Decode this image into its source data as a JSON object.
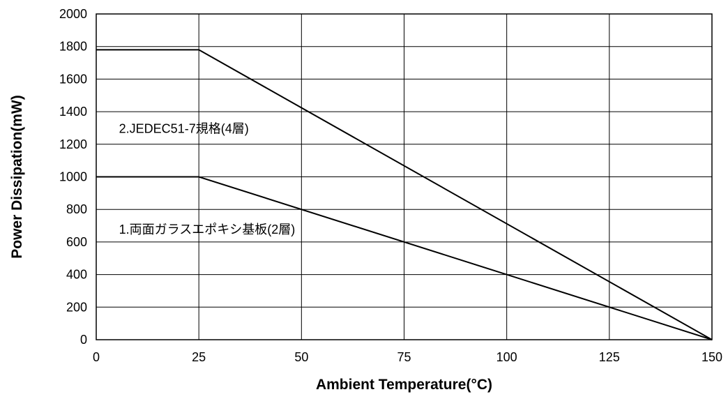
{
  "chart_data": {
    "type": "line",
    "title": "",
    "xlabel": "Ambient Temperature(°C)",
    "ylabel": "Power Dissipation(mW)",
    "xlim": [
      0,
      150
    ],
    "ylim": [
      0,
      2000
    ],
    "xticks": [
      0,
      25,
      50,
      75,
      100,
      125,
      150
    ],
    "yticks": [
      0,
      200,
      400,
      600,
      800,
      1000,
      1200,
      1400,
      1600,
      1800,
      2000
    ],
    "grid": true,
    "legend": "none",
    "series": [
      {
        "x": [
          0,
          25,
          150
        ],
        "y": [
          1780,
          1780,
          0
        ]
      },
      {
        "x": [
          0,
          25,
          150
        ],
        "y": [
          1000,
          1000,
          0
        ]
      }
    ],
    "annotations": [
      {
        "text": "2.JEDEC51-7規格(4層)",
        "x": 3,
        "y": 1300
      },
      {
        "text": "1.両面ガラスエポキシ基板(2層)",
        "x": 3,
        "y": 680
      }
    ]
  }
}
